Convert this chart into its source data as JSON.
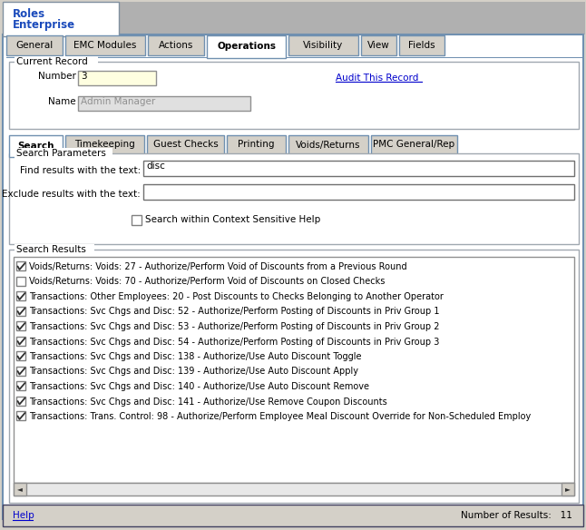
{
  "bg_color": "#d4d0c8",
  "white": "#ffffff",
  "light_yellow": "#fefee0",
  "light_gray": "#e8e8e8",
  "black": "#000000",
  "link_color": "#0000cc",
  "border_color": "#7090b0",
  "border_dark": "#808080",
  "tab_unsel_bg": "#d4d0c8",
  "scrollbar_bg": "#d4d0c8",
  "name_field_bg": "#e0e0e0",
  "name_field_text": "#909090",
  "main_tabs": [
    "General",
    "EMC Modules",
    "Actions",
    "Operations",
    "Visibility",
    "View",
    "Fields"
  ],
  "selected_main_tab": "Operations",
  "sub_tabs": [
    "Search",
    "Timekeeping",
    "Guest Checks",
    "Printing",
    "Voids/Returns",
    "PMC General/Rep"
  ],
  "selected_sub_tab": "Search",
  "title_line1": "Roles",
  "title_line2": "Enterprise",
  "current_record_label": "Current Record",
  "number_label": "Number",
  "number_value": "3",
  "name_label": "Name",
  "name_value": "Admin Manager",
  "audit_link": "Audit This Record",
  "search_params_label": "Search Parameters",
  "find_label": "Find results with the text:",
  "find_value": "disc",
  "exclude_label": "Exclude results with the text:",
  "checkbox_label": "Search within Context Sensitive Help",
  "search_results_label": "Search Results",
  "results": [
    {
      "checked": true,
      "text": "Voids/Returns: Voids: 27 - Authorize/Perform Void of Discounts from a Previous Round"
    },
    {
      "checked": false,
      "text": "Voids/Returns: Voids: 70 - Authorize/Perform Void of Discounts on Closed Checks"
    },
    {
      "checked": true,
      "text": "Transactions: Other Employees: 20 - Post Discounts to Checks Belonging to Another Operator"
    },
    {
      "checked": true,
      "text": "Transactions: Svc Chgs and Disc: 52 - Authorize/Perform Posting of Discounts in Priv Group 1"
    },
    {
      "checked": true,
      "text": "Transactions: Svc Chgs and Disc: 53 - Authorize/Perform Posting of Discounts in Priv Group 2"
    },
    {
      "checked": true,
      "text": "Transactions: Svc Chgs and Disc: 54 - Authorize/Perform Posting of Discounts in Priv Group 3"
    },
    {
      "checked": true,
      "text": "Transactions: Svc Chgs and Disc: 138 - Authorize/Use Auto Discount Toggle"
    },
    {
      "checked": true,
      "text": "Transactions: Svc Chgs and Disc: 139 - Authorize/Use Auto Discount Apply"
    },
    {
      "checked": true,
      "text": "Transactions: Svc Chgs and Disc: 140 - Authorize/Use Auto Discount Remove"
    },
    {
      "checked": true,
      "text": "Transactions: Svc Chgs and Disc: 141 - Authorize/Use Remove Coupon Discounts"
    },
    {
      "checked": true,
      "text": "Transactions: Trans. Control: 98 - Authorize/Perform Employee Meal Discount Override for Non-Scheduled Employ"
    }
  ],
  "help_text": "Help",
  "results_count_label": "Number of Results:",
  "results_count": "11"
}
